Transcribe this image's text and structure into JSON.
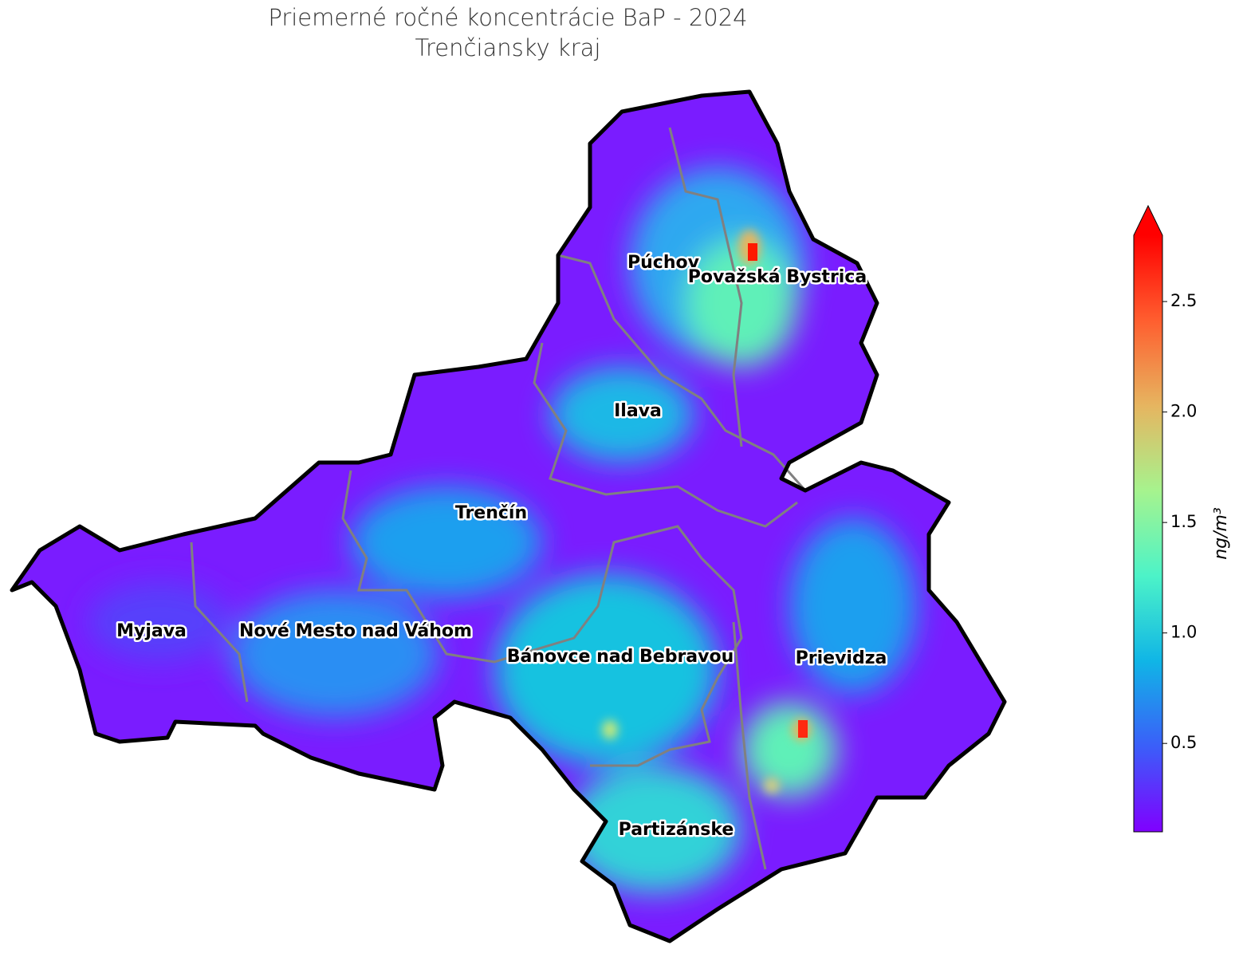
{
  "map": {
    "title": "Priemerné ročné koncentrácie BaP - 2024",
    "subtitle": "Trenčiansky kraj",
    "districts": [
      "Púchov",
      "Považská Bystrica",
      "Ilava",
      "Trenčín",
      "Myjava",
      "Nové Mesto nad Váhom",
      "Bánovce nad Bebravou",
      "Prievidza",
      "Partizánske"
    ]
  },
  "colorbar": {
    "lim": [
      0.1,
      2.8
    ],
    "ticks": [
      0.5,
      {
        "value": 1,
        "label": "1.0"
      },
      1.5,
      {
        "value": 2,
        "label": "2.0"
      },
      2.5
    ],
    "label": "ng/m³",
    "colors": [
      "#8000ff",
      "#3b5ef9",
      "#10b5e6",
      "#4cf3c8",
      "#a6f38e",
      "#e6b560",
      "#ff5e2f",
      "#ff0000"
    ]
  }
}
